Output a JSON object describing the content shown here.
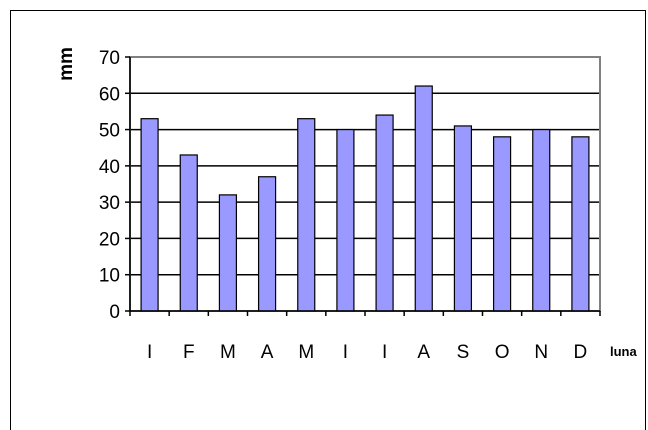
{
  "chart_data": {
    "type": "bar",
    "categories": [
      "I",
      "F",
      "M",
      "A",
      "M",
      "I",
      "I",
      "A",
      "S",
      "O",
      "N",
      "D"
    ],
    "values": [
      53,
      43,
      32,
      37,
      53,
      50,
      54,
      62,
      51,
      48,
      50,
      48
    ],
    "xlabel": "luna",
    "ylabel": "mm",
    "ylim": [
      0,
      70
    ],
    "yticks": [
      "0",
      "10",
      "20",
      "30",
      "40",
      "50",
      "60",
      "70"
    ],
    "grid": true,
    "legend": "none",
    "colors": {
      "bar_fill": "#9999ff",
      "bar_stroke": "#000000",
      "plot_background": "#ffffff",
      "gridline": "#000000",
      "plot_border": "#808080"
    }
  }
}
